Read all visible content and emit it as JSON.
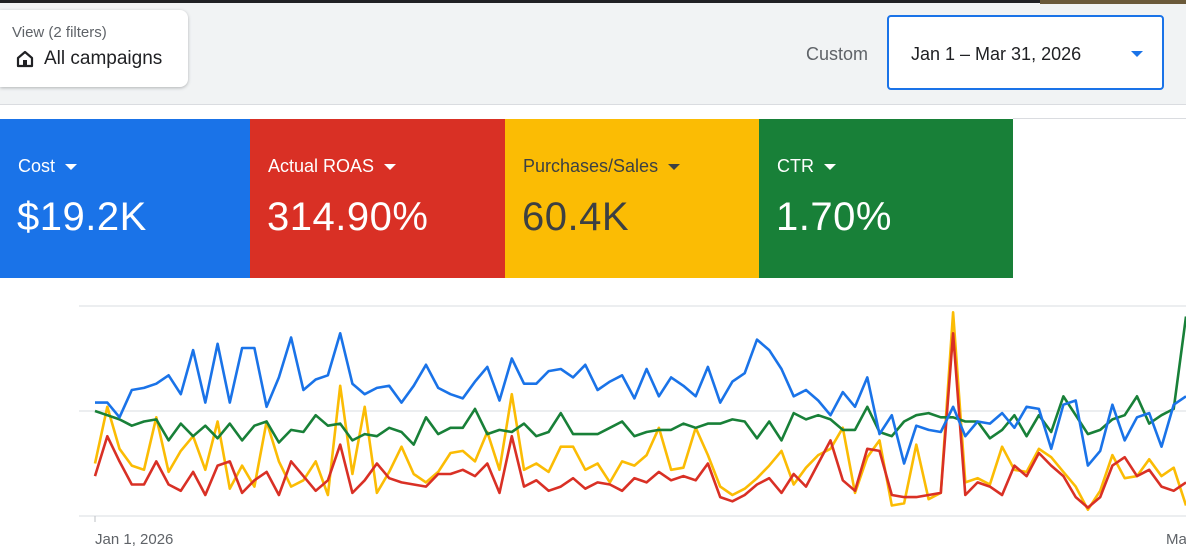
{
  "header": {
    "view_label": "View (2 filters)",
    "view_value": "All campaigns",
    "view_icon": "home-icon",
    "date_mode": "Custom",
    "date_range": "Jan 1 – Mar 31, 2026",
    "accent": "#1a73e8"
  },
  "scorecards": [
    {
      "name": "Cost",
      "value": "$19.2K",
      "color": "#1a73e8"
    },
    {
      "name": "Actual ROAS",
      "value": "314.90%",
      "color": "#d93025"
    },
    {
      "name": "Purchases/Sales",
      "value": "60.4K",
      "color": "#fbbc04"
    },
    {
      "name": "CTR",
      "value": "1.70%",
      "color": "#188038"
    }
  ],
  "chart": {
    "x_start_label": "Jan 1, 2026",
    "x_end_label": "Ma"
  },
  "chart_data": {
    "type": "line",
    "x_start": "Jan 1, 2026",
    "grid": true,
    "series": [
      {
        "name": "Cost",
        "color": "#1a73e8",
        "values": [
          54,
          54,
          47,
          60,
          61,
          63,
          67,
          58,
          79,
          54,
          82,
          54,
          80,
          80,
          52,
          66,
          85,
          60,
          65,
          67,
          87,
          63,
          58,
          61,
          62,
          54,
          62,
          72,
          61,
          58,
          56,
          64,
          71,
          55,
          75,
          63,
          63,
          69,
          70,
          66,
          72,
          60,
          64,
          67,
          56,
          70,
          57,
          66,
          62,
          57,
          71,
          54,
          64,
          68,
          84,
          79,
          70,
          57,
          60,
          55,
          48,
          59,
          52,
          66,
          39,
          48,
          25,
          43,
          41,
          40,
          52,
          38,
          45,
          44,
          49,
          42,
          52,
          51,
          32,
          53,
          55,
          24,
          31,
          53,
          36,
          47,
          49,
          33,
          53,
          57
        ]
      },
      {
        "name": "Actual ROAS",
        "color": "#d93025",
        "values": [
          19,
          38,
          26,
          15,
          15,
          26,
          15,
          12,
          21,
          10,
          24,
          26,
          11,
          17,
          21,
          10,
          26,
          19,
          12,
          17,
          34,
          11,
          17,
          25,
          18,
          16,
          15,
          14,
          20,
          20,
          22,
          19,
          25,
          11,
          38,
          14,
          17,
          12,
          14,
          18,
          13,
          16,
          15,
          12,
          18,
          16,
          21,
          17,
          19,
          17,
          25,
          9,
          7,
          10,
          15,
          18,
          11,
          20,
          14,
          25,
          36,
          17,
          12,
          32,
          31,
          10,
          9,
          9,
          10,
          11,
          87,
          10,
          16,
          14,
          10,
          24,
          19,
          30,
          24,
          19,
          9,
          4,
          9,
          24,
          28,
          19,
          22,
          14,
          12,
          16
        ]
      },
      {
        "name": "Purchases/Sales",
        "color": "#fbbc04",
        "values": [
          25,
          52,
          32,
          24,
          22,
          47,
          21,
          31,
          38,
          22,
          45,
          13,
          24,
          14,
          45,
          26,
          14,
          17,
          26,
          10,
          62,
          20,
          52,
          11,
          21,
          33,
          20,
          16,
          21,
          30,
          31,
          26,
          40,
          22,
          58,
          22,
          25,
          21,
          33,
          33,
          22,
          25,
          16,
          26,
          24,
          29,
          42,
          22,
          23,
          42,
          29,
          14,
          10,
          13,
          18,
          24,
          31,
          15,
          23,
          29,
          32,
          42,
          11,
          28,
          36,
          5,
          6,
          34,
          8,
          11,
          97,
          16,
          18,
          15,
          33,
          22,
          21,
          32,
          28,
          21,
          14,
          3,
          12,
          29,
          18,
          19,
          27,
          19,
          23,
          5
        ]
      },
      {
        "name": "CTR",
        "color": "#188038",
        "values": [
          50,
          48,
          46,
          43,
          45,
          46,
          36,
          44,
          38,
          43,
          37,
          44,
          36,
          43,
          45,
          35,
          41,
          40,
          48,
          43,
          44,
          36,
          39,
          38,
          42,
          40,
          34,
          47,
          39,
          42,
          42,
          51,
          39,
          41,
          40,
          44,
          38,
          40,
          49,
          39,
          39,
          39,
          42,
          45,
          38,
          40,
          41,
          41,
          44,
          42,
          44,
          44,
          46,
          45,
          37,
          45,
          36,
          49,
          46,
          48,
          46,
          41,
          41,
          52,
          40,
          38,
          45,
          48,
          49,
          47,
          47,
          45,
          45,
          37,
          41,
          48,
          38,
          48,
          40,
          57,
          48,
          39,
          41,
          46,
          48,
          57,
          44,
          48,
          51,
          95
        ]
      }
    ]
  }
}
